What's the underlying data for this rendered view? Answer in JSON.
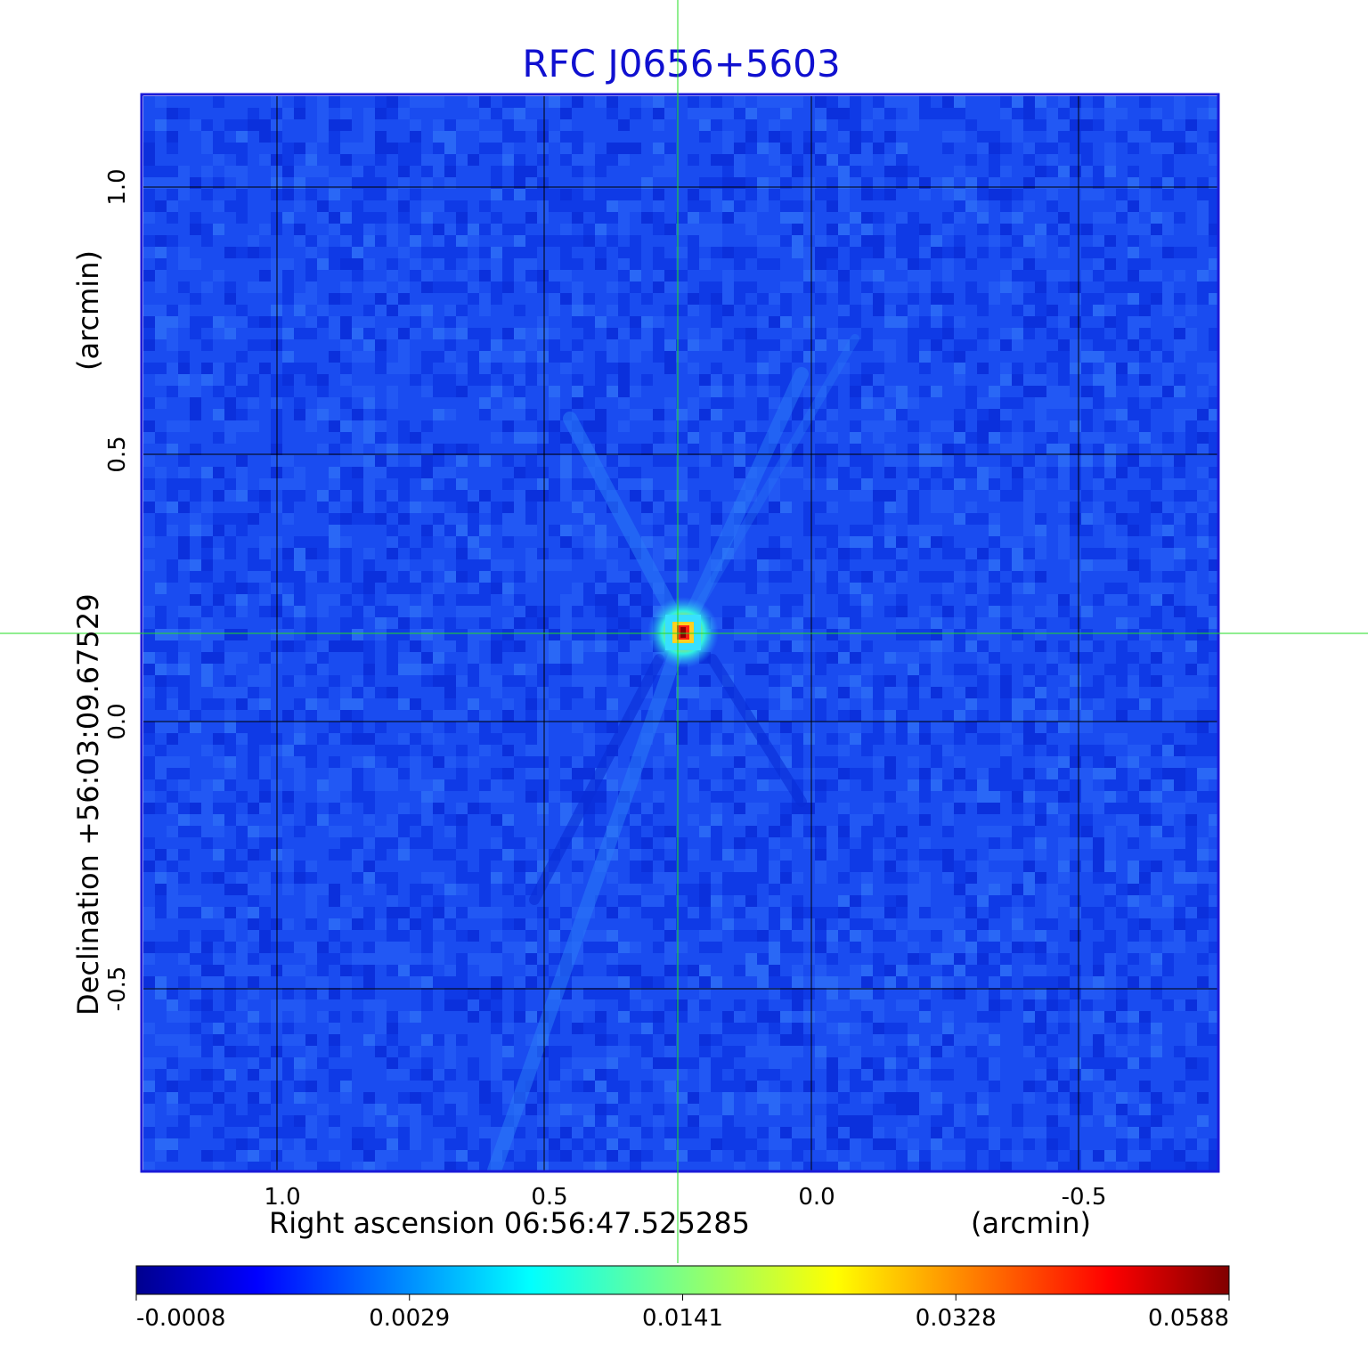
{
  "chart_data": {
    "type": "heatmap",
    "title": "RFC J0656+5603",
    "xlabel": "Right ascension  06:56:47.525285",
    "xunit": "(arcmin)",
    "ylabel": "Declination  +56:03:09.67529",
    "yunit": "(arcmin)",
    "xlim": [
      1.25,
      -0.76
    ],
    "ylim": [
      -0.84,
      1.17
    ],
    "x_ticks": [
      1.0,
      0.5,
      0.0,
      -0.5
    ],
    "x_tick_labels": [
      "1.0",
      "0.5",
      "0.0",
      "-0.5"
    ],
    "y_ticks": [
      1.0,
      0.5,
      0.0,
      -0.5
    ],
    "y_tick_labels": [
      "1.0",
      "0.5",
      "0.0",
      "-0.5"
    ],
    "grid": true,
    "crosshair": {
      "x": 0.25,
      "y": 0.165,
      "color": "#22dd22"
    },
    "source_peak": {
      "x": 0.25,
      "y": 0.165
    },
    "colormap": "jet",
    "colorbar": {
      "ticks": [
        "-0.0008",
        "0.0029",
        "0.0141",
        "0.0328",
        "0.0588"
      ]
    }
  }
}
